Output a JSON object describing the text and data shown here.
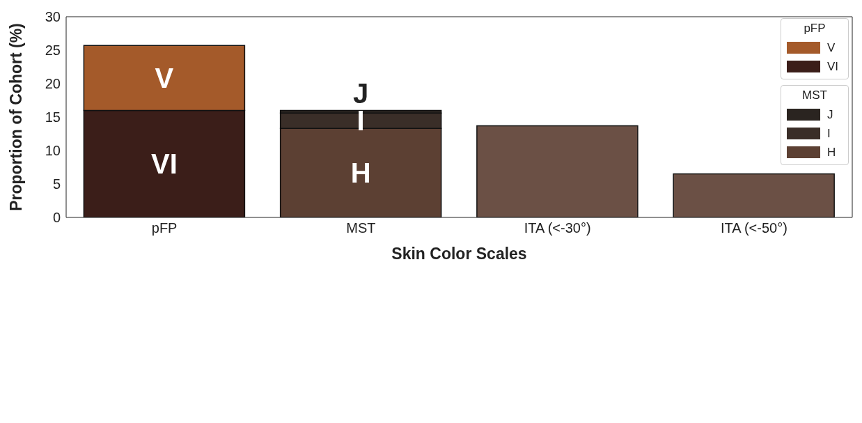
{
  "chart_data": {
    "type": "bar",
    "stacked": true,
    "xlabel": "Skin Color Scales",
    "ylabel": "Proportion of Cohort (%)",
    "categories": [
      "pFP",
      "MST",
      "ITA (<-30°)",
      "ITA (<-50°)"
    ],
    "series": [
      {
        "name": "VI",
        "color": "#3b1e19",
        "values": [
          16.0,
          null,
          null,
          null
        ]
      },
      {
        "name": "V",
        "color": "#a45a2a",
        "values": [
          9.7,
          null,
          null,
          null
        ]
      },
      {
        "name": "H",
        "color": "#5c4033",
        "values": [
          null,
          13.3,
          null,
          null
        ]
      },
      {
        "name": "I",
        "color": "#3a2e28",
        "values": [
          null,
          2.3,
          null,
          null
        ]
      },
      {
        "name": "J",
        "color": "#2a2420",
        "values": [
          null,
          0.4,
          null,
          null
        ]
      },
      {
        "color": "#6b5045",
        "values": [
          null,
          null,
          13.7,
          6.5
        ]
      }
    ],
    "legend_title": [
      "pFP",
      "MST"
    ],
    "legend": "top right",
    "ylim": [
      0,
      30
    ],
    "yticks": [
      0,
      5,
      10,
      15,
      20,
      25,
      30
    ],
    "grid": false
  }
}
